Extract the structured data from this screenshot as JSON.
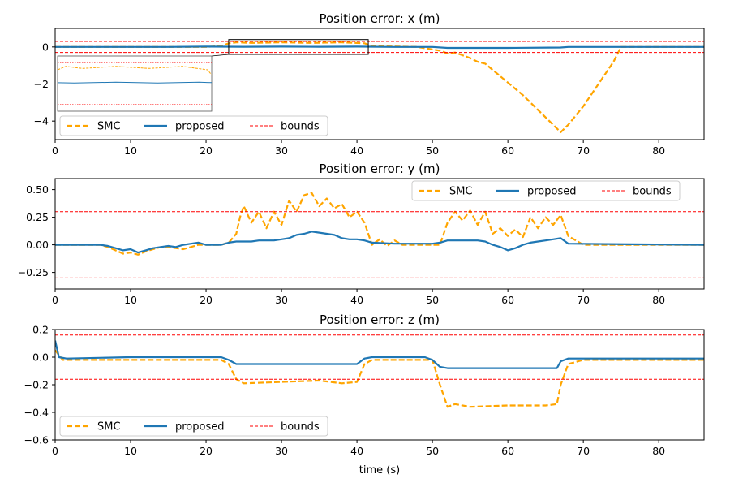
{
  "colors": {
    "smc": "#ffa500",
    "proposed": "#1f77b4",
    "bounds": "#ff0000"
  },
  "legend": {
    "smc": "SMC",
    "proposed": "proposed",
    "bounds": "bounds"
  },
  "xlabel": "time (s)",
  "chart_data": [
    {
      "type": "line",
      "title": "Position error: x (m)",
      "xlim": [
        0,
        86
      ],
      "ylim": [
        -5.0,
        1.0
      ],
      "xticks": [
        0,
        10,
        20,
        30,
        40,
        50,
        60,
        70,
        80
      ],
      "yticks": [
        0,
        -2,
        -4
      ],
      "ytick_labels": [
        "0",
        "−2",
        "−4"
      ],
      "bounds": [
        0.3,
        -0.3
      ],
      "legend_position": "lower-left",
      "series": [
        {
          "name": "SMC",
          "style": "dashed",
          "x": [
            0,
            16,
            20,
            22,
            23,
            24,
            26,
            30,
            34,
            38,
            41,
            42,
            48,
            51,
            52,
            53,
            54,
            55,
            56,
            57,
            62,
            67,
            68,
            70,
            72,
            74,
            75,
            86
          ],
          "y": [
            0,
            0,
            0,
            0.05,
            0.2,
            0.25,
            0.22,
            0.25,
            0.22,
            0.25,
            0.2,
            0.05,
            0,
            -0.2,
            -0.35,
            -0.3,
            -0.45,
            -0.6,
            -0.8,
            -0.9,
            -2.6,
            -4.6,
            -4.2,
            -3.2,
            -2.0,
            -0.8,
            0,
            0
          ]
        },
        {
          "name": "proposed",
          "style": "solid",
          "x": [
            0,
            15,
            20,
            25,
            30,
            35,
            40,
            45,
            50,
            52,
            60,
            67,
            68,
            86
          ],
          "y": [
            0,
            0,
            0.02,
            0.01,
            0.02,
            0.01,
            0.02,
            0.0,
            0.0,
            -0.05,
            -0.05,
            -0.03,
            0.0,
            0.0
          ]
        }
      ],
      "inset": {
        "zoom_x": [
          23,
          41.5
        ],
        "zoom_y": [
          -0.4,
          0.4
        ]
      }
    },
    {
      "type": "line",
      "title": "Position error: y (m)",
      "xlim": [
        0,
        86
      ],
      "ylim": [
        -0.4,
        0.6
      ],
      "xticks": [
        0,
        10,
        20,
        30,
        40,
        50,
        60,
        70,
        80
      ],
      "yticks": [
        0.5,
        0.25,
        0.0,
        -0.25
      ],
      "ytick_labels": [
        "0.50",
        "0.25",
        "0.00",
        "−0.25"
      ],
      "bounds": [
        0.3,
        -0.3
      ],
      "legend_position": "top-right",
      "series": [
        {
          "name": "SMC",
          "style": "dashed",
          "x": [
            0,
            6,
            7,
            8,
            9,
            10,
            11,
            12,
            13,
            14,
            15,
            16,
            17,
            18,
            19,
            20,
            22,
            23,
            24,
            24.5,
            25,
            26,
            27,
            28,
            29,
            30,
            31,
            32,
            33,
            34,
            35,
            36,
            37,
            38,
            39,
            40,
            41,
            42,
            43,
            44,
            45,
            46,
            48,
            50,
            51,
            52,
            53,
            54,
            55,
            56,
            57,
            58,
            59,
            60,
            61,
            62,
            63,
            64,
            65,
            66,
            67,
            68,
            69,
            70,
            86
          ],
          "y": [
            0,
            0,
            -0.02,
            -0.05,
            -0.08,
            -0.07,
            -0.09,
            -0.06,
            -0.04,
            -0.02,
            -0.02,
            -0.03,
            -0.04,
            -0.02,
            0,
            0,
            0,
            0.02,
            0.1,
            0.25,
            0.35,
            0.2,
            0.3,
            0.15,
            0.3,
            0.18,
            0.4,
            0.3,
            0.45,
            0.47,
            0.35,
            0.42,
            0.33,
            0.37,
            0.25,
            0.3,
            0.2,
            0.0,
            0.05,
            -0.01,
            0.04,
            0.0,
            0.0,
            0.0,
            0.0,
            0.2,
            0.3,
            0.22,
            0.31,
            0.18,
            0.3,
            0.1,
            0.15,
            0.08,
            0.14,
            0.07,
            0.25,
            0.15,
            0.25,
            0.18,
            0.27,
            0.08,
            0.04,
            0.0,
            0.0
          ]
        },
        {
          "name": "proposed",
          "style": "solid",
          "x": [
            0,
            6,
            7,
            8,
            9,
            10,
            11,
            12,
            13,
            14,
            15,
            16,
            17,
            18,
            19,
            20,
            22,
            23,
            24,
            25,
            26,
            27,
            28,
            29,
            30,
            31,
            32,
            33,
            34,
            35,
            36,
            37,
            38,
            39,
            40,
            41,
            42,
            45,
            50,
            51,
            52,
            53,
            56,
            57,
            58,
            59,
            60,
            61,
            62,
            63,
            64,
            65,
            66,
            67,
            68,
            86
          ],
          "y": [
            0,
            0,
            -0.01,
            -0.03,
            -0.05,
            -0.04,
            -0.07,
            -0.05,
            -0.03,
            -0.02,
            -0.01,
            -0.02,
            0.0,
            0.01,
            0.02,
            0.0,
            0.0,
            0.02,
            0.03,
            0.03,
            0.03,
            0.04,
            0.04,
            0.04,
            0.05,
            0.06,
            0.09,
            0.1,
            0.12,
            0.11,
            0.1,
            0.09,
            0.06,
            0.05,
            0.05,
            0.04,
            0.02,
            0.01,
            0.01,
            0.02,
            0.04,
            0.04,
            0.04,
            0.03,
            0.0,
            -0.02,
            -0.05,
            -0.03,
            0.0,
            0.02,
            0.03,
            0.04,
            0.05,
            0.06,
            0.01,
            0.0
          ]
        }
      ]
    },
    {
      "type": "line",
      "title": "Position error: z (m)",
      "xlim": [
        0,
        86
      ],
      "ylim": [
        -0.6,
        0.2
      ],
      "xticks": [
        0,
        10,
        20,
        30,
        40,
        50,
        60,
        70,
        80
      ],
      "yticks": [
        0.2,
        0.0,
        -0.2,
        -0.4,
        -0.6
      ],
      "ytick_labels": [
        "0.2",
        "0.0",
        "−0.2",
        "−0.4",
        "−0.6"
      ],
      "bounds": [
        0.16,
        -0.16
      ],
      "legend_position": "lower-left",
      "series": [
        {
          "name": "SMC",
          "style": "dashed",
          "x": [
            0,
            1,
            10,
            20,
            22,
            23,
            24,
            25,
            30,
            35,
            38,
            40,
            41,
            42,
            45,
            48,
            50,
            51,
            52,
            53,
            55,
            60,
            65,
            66.5,
            67,
            68,
            70,
            86
          ],
          "y": [
            0.05,
            -0.02,
            -0.02,
            -0.02,
            -0.02,
            -0.05,
            -0.16,
            -0.19,
            -0.18,
            -0.17,
            -0.19,
            -0.18,
            -0.05,
            -0.02,
            -0.02,
            -0.02,
            -0.02,
            -0.2,
            -0.36,
            -0.34,
            -0.36,
            -0.35,
            -0.35,
            -0.34,
            -0.2,
            -0.05,
            -0.02,
            -0.02
          ]
        },
        {
          "name": "proposed",
          "style": "solid",
          "x": [
            0,
            0.5,
            1.5,
            10,
            20,
            22,
            23,
            24,
            30,
            40,
            41,
            42,
            45,
            49,
            50,
            51,
            52,
            60,
            66.5,
            67,
            68,
            70,
            86
          ],
          "y": [
            0.12,
            0.0,
            -0.01,
            0.0,
            0.0,
            0.0,
            -0.02,
            -0.05,
            -0.05,
            -0.05,
            -0.01,
            0.0,
            0.0,
            0.0,
            -0.02,
            -0.07,
            -0.08,
            -0.08,
            -0.08,
            -0.03,
            -0.01,
            -0.01,
            -0.01
          ]
        }
      ]
    }
  ]
}
